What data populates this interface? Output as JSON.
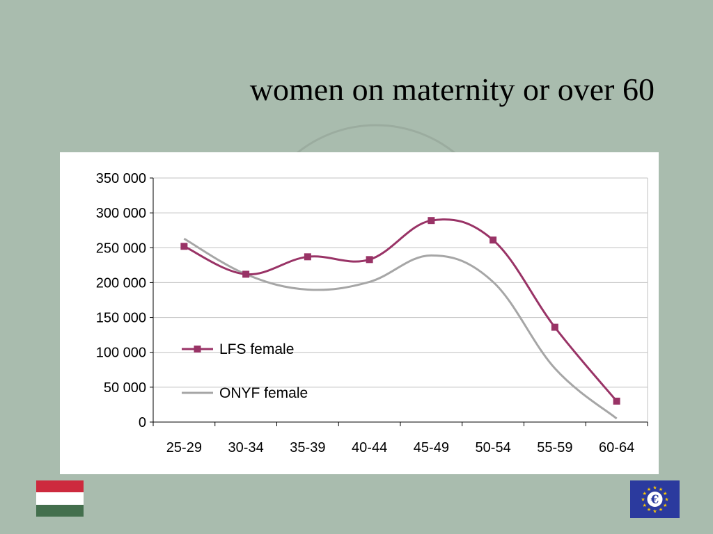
{
  "slide": {
    "title": "women on maternity or over 60"
  },
  "chart_data": {
    "type": "line",
    "categories": [
      "25-29",
      "30-34",
      "35-39",
      "40-44",
      "45-49",
      "50-54",
      "55-59",
      "60-64"
    ],
    "ylim": [
      0,
      350000
    ],
    "yticks": [
      0,
      50000,
      100000,
      150000,
      200000,
      250000,
      300000,
      350000
    ],
    "ytick_labels": [
      "0",
      "50 000",
      "100 000",
      "150 000",
      "200 000",
      "250 000",
      "300 000",
      "350 000"
    ],
    "grid": "horizontal",
    "legend_placement": "lower-left",
    "series": [
      {
        "name": "LFS female",
        "values": [
          252000,
          212000,
          237000,
          233000,
          289000,
          261000,
          136000,
          30000
        ],
        "color": "#993366",
        "marker": "square"
      },
      {
        "name": "ONYF female",
        "values": [
          263000,
          212000,
          190000,
          201000,
          239000,
          201000,
          77000,
          5000
        ],
        "color": "#a6a6a6",
        "marker": "none"
      }
    ]
  },
  "colors": {
    "background": "#a9bcae",
    "hu_flag": [
      "#cd2a3e",
      "#ffffff",
      "#436f4d"
    ],
    "eu_blue": "#2b3a9e",
    "eu_gold": "#ffcc00"
  },
  "icons": {
    "flag": "hungary-flag-icon",
    "logo": "eu-euro-logo-icon"
  }
}
